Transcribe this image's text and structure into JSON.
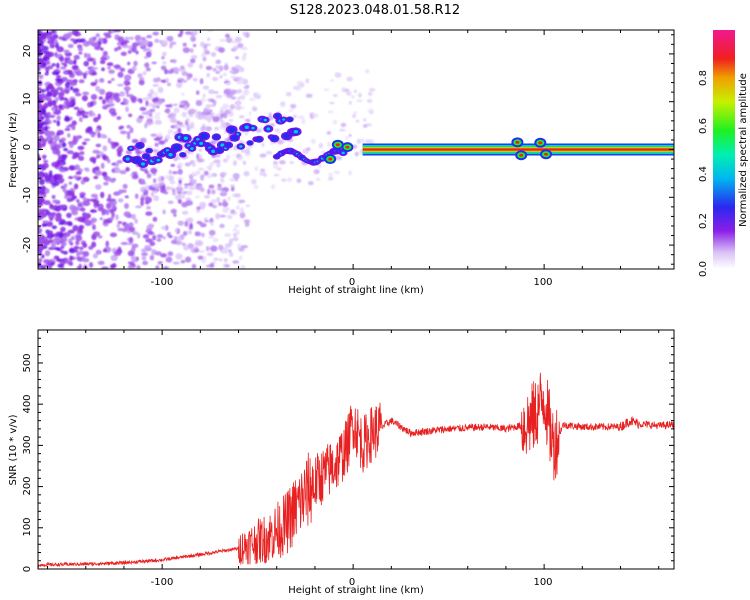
{
  "title": "S128.2023.048.01.58.R12",
  "colors": {
    "snr_line": "#e82020",
    "axis": "#000000"
  },
  "chart_data": [
    {
      "type": "heatmap",
      "title": "",
      "xlabel": "Height of straight line (km)",
      "ylabel": "Frequency (Hz)",
      "xlim": [
        -165,
        168
      ],
      "ylim": [
        -25,
        25
      ],
      "xticks": [
        "-100",
        "0",
        "100"
      ],
      "yticks": [
        "-20",
        "-10",
        "0",
        "10",
        "20"
      ],
      "colorbar": {
        "label": "Normalized spectral amplitude",
        "range": [
          0,
          1
        ],
        "ticks": [
          "0.0",
          "0.2",
          "0.4",
          "0.6",
          "0.8"
        ],
        "colormap": "rainbow (white-violet-blue-cyan-green-yellow-red-magenta)"
      },
      "features": {
        "carrier_frequency_hz": 0,
        "strong_carrier_from_km": 5,
        "strong_carrier_to_km": 168,
        "noise_region_to_km": -110
      }
    },
    {
      "type": "line",
      "title": "",
      "xlabel": "Height of straight line (km)",
      "ylabel": "SNR (10 * v/v)",
      "xlim": [
        -165,
        168
      ],
      "ylim": [
        0,
        580
      ],
      "xticks": [
        "-100",
        "0",
        "100"
      ],
      "yticks": [
        "0",
        "100",
        "200",
        "300",
        "400",
        "500"
      ],
      "series": [
        {
          "x": [
            -165,
            -140,
            -120,
            -100,
            -80,
            -60,
            -45,
            -35,
            -28,
            -22,
            -15,
            -8,
            -3,
            0,
            5,
            10,
            20,
            30,
            50,
            70,
            80,
            90,
            95,
            100,
            103,
            105,
            110,
            120,
            140,
            145,
            150,
            160,
            168
          ],
          "y": [
            10,
            12,
            15,
            22,
            35,
            50,
            75,
            110,
            160,
            200,
            230,
            260,
            300,
            360,
            300,
            330,
            360,
            330,
            340,
            345,
            340,
            350,
            370,
            420,
            340,
            300,
            350,
            345,
            345,
            360,
            352,
            348,
            350
          ]
        }
      ]
    }
  ]
}
